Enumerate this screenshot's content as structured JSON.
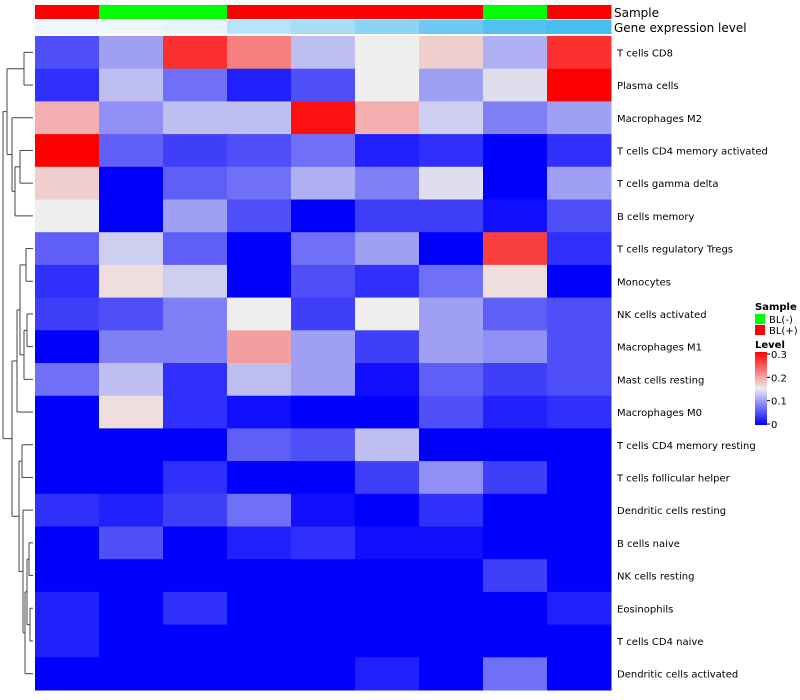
{
  "chart_data": {
    "type": "heatmap",
    "columns": 9,
    "annotation_tracks": {
      "sample_label": "Sample",
      "sample": [
        "BL(+)",
        "BL(-)",
        "BL(-)",
        "BL(+)",
        "BL(+)",
        "BL(+)",
        "BL(+)",
        "BL(-)",
        "BL(+)"
      ],
      "expression_label": "Gene expression level",
      "expression": [
        0.02,
        0.02,
        0.03,
        0.12,
        0.15,
        0.2,
        0.25,
        0.3,
        0.32
      ]
    },
    "rows": [
      "T cells CD8",
      "Plasma cells",
      "Macrophages M2",
      "T cells CD4 memory activated",
      "T cells gamma delta",
      "B cells memory",
      "T cells regulatory  Tregs",
      "Monocytes",
      "NK cells activated",
      "Macrophages M1",
      "Mast cells resting",
      "Macrophages M0",
      "T cells CD4 memory resting",
      "T cells follicular helper",
      "Dendritic cells resting",
      "B cells naive",
      "NK cells resting",
      "Eosinophils",
      "T cells CD4 naive",
      "Dendritic cells activated"
    ],
    "values": [
      [
        0.05,
        0.1,
        0.27,
        0.22,
        0.12,
        0.15,
        0.17,
        0.11,
        0.27
      ],
      [
        0.03,
        0.12,
        0.07,
        0.02,
        0.05,
        0.15,
        0.1,
        0.14,
        0.3
      ],
      [
        0.19,
        0.09,
        0.12,
        0.12,
        0.29,
        0.19,
        0.13,
        0.08,
        0.1
      ],
      [
        0.3,
        0.06,
        0.04,
        0.05,
        0.07,
        0.02,
        0.03,
        0.0,
        0.03
      ],
      [
        0.17,
        0.0,
        0.06,
        0.07,
        0.11,
        0.08,
        0.14,
        0.0,
        0.1
      ],
      [
        0.15,
        0.0,
        0.1,
        0.05,
        0.0,
        0.04,
        0.04,
        0.01,
        0.05
      ],
      [
        0.06,
        0.13,
        0.06,
        0.0,
        0.07,
        0.1,
        0.0,
        0.26,
        0.03
      ],
      [
        0.03,
        0.16,
        0.13,
        0.0,
        0.05,
        0.03,
        0.07,
        0.16,
        0.0
      ],
      [
        0.04,
        0.05,
        0.08,
        0.15,
        0.04,
        0.15,
        0.1,
        0.06,
        0.05
      ],
      [
        0.0,
        0.08,
        0.08,
        0.2,
        0.1,
        0.04,
        0.1,
        0.09,
        0.05
      ],
      [
        0.07,
        0.12,
        0.03,
        0.12,
        0.1,
        0.01,
        0.06,
        0.04,
        0.05
      ],
      [
        0.0,
        0.16,
        0.03,
        0.01,
        0.0,
        0.0,
        0.05,
        0.02,
        0.03
      ],
      [
        0.0,
        0.0,
        0.0,
        0.06,
        0.05,
        0.12,
        0.0,
        0.0,
        0.0
      ],
      [
        0.0,
        0.0,
        0.03,
        0.0,
        0.0,
        0.04,
        0.09,
        0.04,
        0.0
      ],
      [
        0.03,
        0.02,
        0.04,
        0.07,
        0.01,
        0.0,
        0.03,
        0.0,
        0.0
      ],
      [
        0.0,
        0.05,
        0.0,
        0.02,
        0.03,
        0.01,
        0.01,
        0.0,
        0.0
      ],
      [
        0.0,
        0.0,
        0.0,
        0.0,
        0.0,
        0.0,
        0.0,
        0.04,
        0.0
      ],
      [
        0.02,
        0.0,
        0.03,
        0.0,
        0.0,
        0.0,
        0.0,
        0.0,
        0.02
      ],
      [
        0.02,
        0.0,
        0.0,
        0.0,
        0.0,
        0.0,
        0.0,
        0.0,
        0.0
      ],
      [
        0.0,
        0.0,
        0.0,
        0.0,
        0.0,
        0.02,
        0.0,
        0.07,
        0.0
      ]
    ],
    "color_scale": {
      "min": 0,
      "mid": 0.15,
      "max": 0.3,
      "colors": [
        "#0000ff",
        "#eeeeee",
        "#ff0000"
      ]
    },
    "legends": {
      "sample": {
        "title": "Sample",
        "entries": [
          {
            "label": "BL(-)",
            "color": "#00ff00"
          },
          {
            "label": "BL(+)",
            "color": "#ff0000"
          }
        ]
      },
      "level": {
        "title": "Level",
        "ticks": [
          "0.3",
          "0.2",
          "0.1",
          "0"
        ]
      },
      "placement": "right"
    },
    "row_dendrogram": true
  }
}
